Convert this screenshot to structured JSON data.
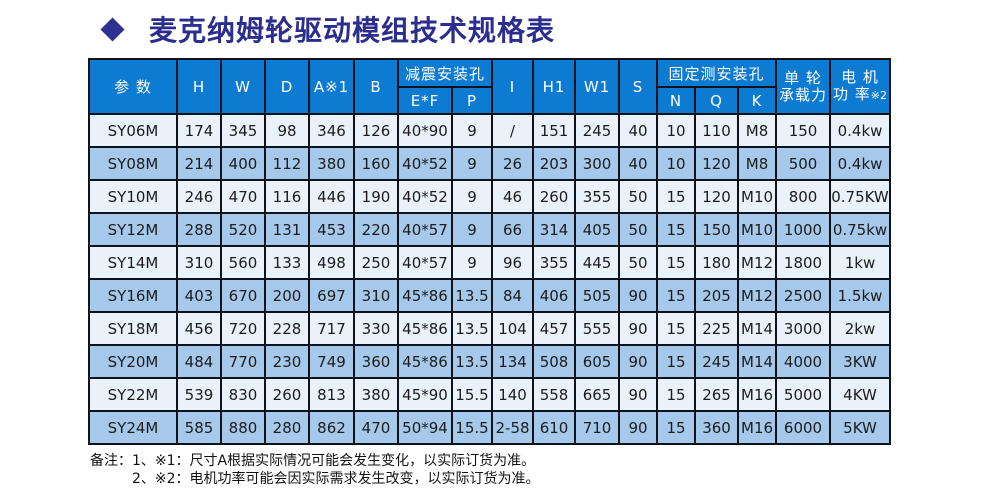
{
  "title": {
    "bullet": "diamond",
    "text": "麦克纳姆轮驱动模组技术规格表"
  },
  "colors": {
    "title_navy": "#2b2e8e",
    "header_blue": "#0e7bd3",
    "row_light": "#e9f1fa",
    "row_dark": "#a6c8ea",
    "border": "#0e131b"
  },
  "table": {
    "header": {
      "param": "参  数",
      "h": "H",
      "w": "W",
      "d": "D",
      "a": "A※1",
      "b": "B",
      "shock_group": "减震安装孔",
      "ef": "E*F",
      "p": "P",
      "i": "I",
      "h1": "H1",
      "w1": "W1",
      "s": "S",
      "fixed_group": "固定测安装孔",
      "n": "N",
      "q": "Q",
      "k": "K",
      "load_line1": "单  轮",
      "load_line2": "承载力",
      "motor_line1": "电 机",
      "motor_line2": "功 率",
      "motor_note": "※2"
    },
    "rows": [
      {
        "model": "SY06M",
        "values": [
          "174",
          "345",
          "98",
          "346",
          "126",
          "40*90",
          "9",
          "/",
          "151",
          "245",
          "40",
          "10",
          "110",
          "M8",
          "150",
          "0.4kw"
        ]
      },
      {
        "model": "SY08M",
        "values": [
          "214",
          "400",
          "112",
          "380",
          "160",
          "40*52",
          "9",
          "26",
          "203",
          "300",
          "40",
          "10",
          "120",
          "M8",
          "500",
          "0.4kw"
        ]
      },
      {
        "model": "SY10M",
        "values": [
          "246",
          "470",
          "116",
          "446",
          "190",
          "40*52",
          "9",
          "46",
          "260",
          "355",
          "50",
          "15",
          "120",
          "M10",
          "800",
          "0.75KW"
        ]
      },
      {
        "model": "SY12M",
        "values": [
          "288",
          "520",
          "131",
          "453",
          "220",
          "40*57",
          "9",
          "66",
          "314",
          "405",
          "50",
          "15",
          "150",
          "M10",
          "1000",
          "0.75kw"
        ]
      },
      {
        "model": "SY14M",
        "values": [
          "310",
          "560",
          "133",
          "498",
          "250",
          "40*57",
          "9",
          "96",
          "355",
          "445",
          "50",
          "15",
          "180",
          "M12",
          "1800",
          "1kw"
        ]
      },
      {
        "model": "SY16M",
        "values": [
          "403",
          "670",
          "200",
          "697",
          "310",
          "45*86",
          "13.5",
          "84",
          "406",
          "505",
          "90",
          "15",
          "205",
          "M12",
          "2500",
          "1.5kw"
        ]
      },
      {
        "model": "SY18M",
        "values": [
          "456",
          "720",
          "228",
          "717",
          "330",
          "45*86",
          "13.5",
          "104",
          "457",
          "555",
          "90",
          "15",
          "225",
          "M14",
          "3000",
          "2kw"
        ]
      },
      {
        "model": "SY20M",
        "values": [
          "484",
          "770",
          "230",
          "749",
          "360",
          "45*86",
          "13.5",
          "134",
          "508",
          "605",
          "90",
          "15",
          "245",
          "M14",
          "4000",
          "3KW"
        ]
      },
      {
        "model": "SY22M",
        "values": [
          "539",
          "830",
          "260",
          "813",
          "380",
          "45*90",
          "15.5",
          "140",
          "558",
          "665",
          "90",
          "15",
          "265",
          "M16",
          "5000",
          "4KW"
        ]
      },
      {
        "model": "SY24M",
        "values": [
          "585",
          "880",
          "280",
          "862",
          "470",
          "50*94",
          "15.5",
          "2-58",
          "610",
          "710",
          "90",
          "15",
          "360",
          "M16",
          "6000",
          "5KW"
        ]
      }
    ]
  },
  "notes": {
    "label": "备注：",
    "line1": "1、※1：尺寸A根据实际情况可能会发生变化，以实际订货为准。",
    "line2": "2、※2：电机功率可能会因实际需求发生改变，以实际订货为准。"
  }
}
